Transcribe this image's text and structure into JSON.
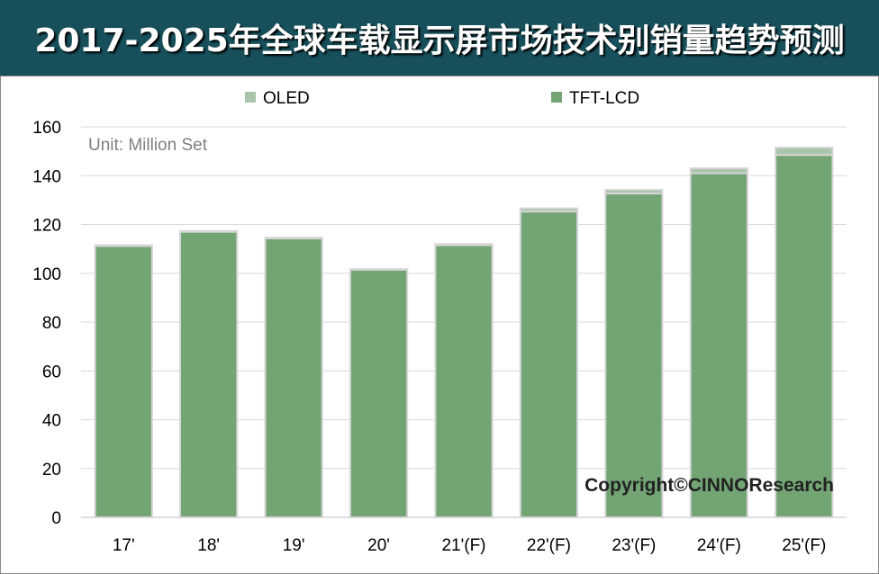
{
  "chart_data": {
    "type": "bar",
    "stacked": true,
    "title": "2017-2025年全球车载显示屏市场技术别销量趋势预测",
    "unit_note": "Unit: Million Set",
    "copyright": "Copyright©CINNOResearch",
    "categories": [
      "17'",
      "18'",
      "19'",
      "20'",
      "21'(F)",
      "22'(F)",
      "23'(F)",
      "24'(F)",
      "25'(F)"
    ],
    "series": [
      {
        "name": "TFT-LCD",
        "color": "#72a474",
        "values": [
          111.2,
          117.0,
          114.3,
          101.5,
          111.5,
          125.3,
          132.7,
          141.0,
          148.5
        ]
      },
      {
        "name": "OLED",
        "color": "#a9c4ab",
        "values": [
          0.3,
          0.3,
          0.3,
          0.2,
          0.5,
          1.3,
          1.5,
          2.0,
          3.0
        ]
      }
    ],
    "legend_order": [
      "OLED",
      "TFT-LCD"
    ],
    "legend_position": "top",
    "ylim": [
      0,
      160
    ],
    "yticks": [
      0,
      20,
      40,
      60,
      80,
      100,
      120,
      140,
      160
    ],
    "grid": true
  }
}
